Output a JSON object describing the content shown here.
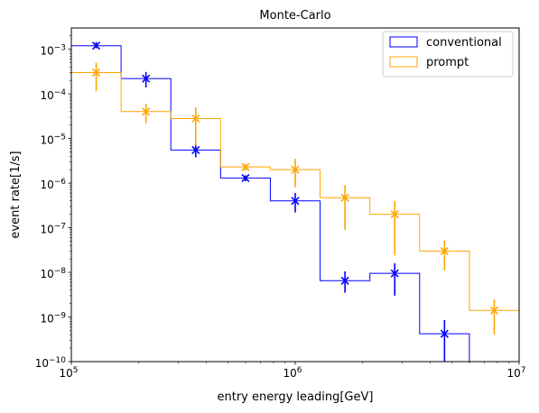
{
  "chart_data": {
    "type": "histogram",
    "title": "Monte-Carlo",
    "xlabel": "entry energy leading[GeV]",
    "ylabel": "event rate[1/s]",
    "xscale": "log",
    "yscale": "log",
    "xlim": [
      100000,
      10000000
    ],
    "ylim": [
      1e-10,
      0.003
    ],
    "x_ticks": [
      {
        "value": 100000,
        "base": "10",
        "exp": "5"
      },
      {
        "value": 1000000,
        "base": "10",
        "exp": "6"
      },
      {
        "value": 10000000,
        "base": "10",
        "exp": "7"
      }
    ],
    "y_ticks": [
      {
        "value": 1e-10,
        "base": "10",
        "exp": "−10"
      },
      {
        "value": 1e-09,
        "base": "10",
        "exp": "−9"
      },
      {
        "value": 1e-08,
        "base": "10",
        "exp": "−8"
      },
      {
        "value": 1e-07,
        "base": "10",
        "exp": "−7"
      },
      {
        "value": 1e-06,
        "base": "10",
        "exp": "−6"
      },
      {
        "value": 1e-05,
        "base": "10",
        "exp": "−5"
      },
      {
        "value": 0.0001,
        "base": "10",
        "exp": "−4"
      },
      {
        "value": 0.001,
        "base": "10",
        "exp": "−3"
      }
    ],
    "legend_position": "top-right",
    "bin_edges": [
      100000,
      166810,
      278256,
      464159,
      774264,
      1291550,
      2154435,
      3593814,
      5994843,
      10000000
    ],
    "series": [
      {
        "name": "conventional",
        "color": "#0000ff",
        "values": [
          0.0012,
          0.00022,
          5.5e-06,
          1.3e-06,
          4e-07,
          6.5e-09,
          9.5e-09,
          4.2e-10,
          0
        ],
        "points": [
          {
            "x": 129155,
            "y": 0.0012,
            "ylo": 0.00105,
            "yhi": 0.00145
          },
          {
            "x": 215443,
            "y": 0.00022,
            "ylo": 0.00014,
            "yhi": 0.00031
          },
          {
            "x": 359381,
            "y": 5.5e-06,
            "ylo": 3.8e-06,
            "yhi": 8.5e-06
          },
          {
            "x": 599484,
            "y": 1.3e-06,
            "ylo": 1.1e-06,
            "yhi": 1.5e-06
          },
          {
            "x": 1000000,
            "y": 4e-07,
            "ylo": 2.2e-07,
            "yhi": 6e-07
          },
          {
            "x": 1668101,
            "y": 6.5e-09,
            "ylo": 3.5e-09,
            "yhi": 1.05e-08
          },
          {
            "x": 2782559,
            "y": 9.5e-09,
            "ylo": 3e-09,
            "yhi": 1.6e-08
          },
          {
            "x": 4641589,
            "y": 4.2e-10,
            "ylo": 1e-10,
            "yhi": 8.5e-10
          }
        ]
      },
      {
        "name": "prompt",
        "color": "#ffa500",
        "values": [
          0.0003,
          4e-05,
          2.8e-05,
          2.3e-06,
          2e-06,
          4.7e-07,
          2e-07,
          3e-08,
          1.4e-09
        ],
        "points": [
          {
            "x": 129155,
            "y": 0.0003,
            "ylo": 0.000115,
            "yhi": 0.0005
          },
          {
            "x": 215443,
            "y": 4e-05,
            "ylo": 2.2e-05,
            "yhi": 6e-05
          },
          {
            "x": 359381,
            "y": 2.8e-05,
            "ylo": 7e-06,
            "yhi": 5e-05
          },
          {
            "x": 599484,
            "y": 2.3e-06,
            "ylo": 1.9e-06,
            "yhi": 2.7e-06
          },
          {
            "x": 1000000,
            "y": 2e-06,
            "ylo": 8e-07,
            "yhi": 3.5e-06
          },
          {
            "x": 1668101,
            "y": 4.7e-07,
            "ylo": 9e-08,
            "yhi": 9e-07
          },
          {
            "x": 2782559,
            "y": 2e-07,
            "ylo": 2.4e-08,
            "yhi": 4e-07
          },
          {
            "x": 4641589,
            "y": 3e-08,
            "ylo": 1.1e-08,
            "yhi": 5.2e-08
          },
          {
            "x": 7742637,
            "y": 1.4e-09,
            "ylo": 4e-10,
            "yhi": 2.5e-09
          }
        ]
      }
    ]
  }
}
